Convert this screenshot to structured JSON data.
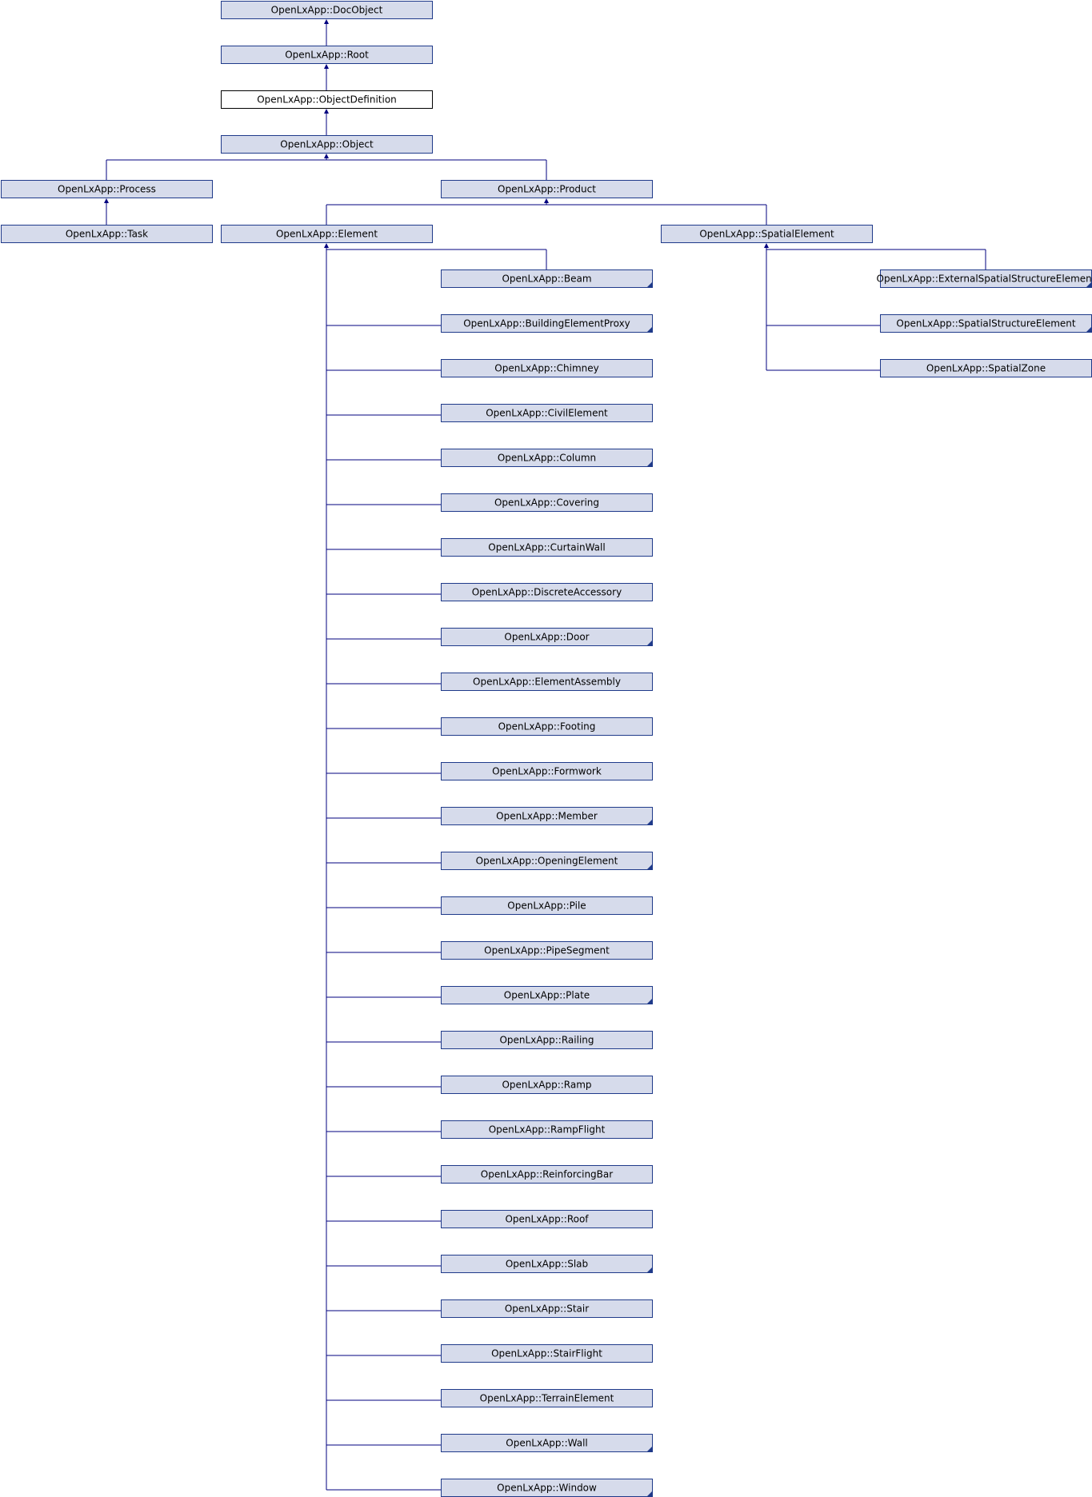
{
  "diagram": {
    "title": "",
    "colors": {
      "node_fill": "#d6dbeb",
      "node_border": "#1f3a8a",
      "edge": "#00007f",
      "current_fill": "#ffffff"
    },
    "nodes": [
      {
        "id": "docobject",
        "label": "OpenLxApp::DocObject"
      },
      {
        "id": "root",
        "label": "OpenLxApp::Root"
      },
      {
        "id": "objectdefinition",
        "label": "OpenLxApp::ObjectDefinition",
        "current": true
      },
      {
        "id": "object",
        "label": "OpenLxApp::Object"
      },
      {
        "id": "process",
        "label": "OpenLxApp::Process"
      },
      {
        "id": "product",
        "label": "OpenLxApp::Product"
      },
      {
        "id": "task",
        "label": "OpenLxApp::Task"
      },
      {
        "id": "element",
        "label": "OpenLxApp::Element"
      },
      {
        "id": "spatialelement",
        "label": "OpenLxApp::SpatialElement"
      },
      {
        "id": "beam",
        "label": "OpenLxApp::Beam",
        "more": true
      },
      {
        "id": "buildingelementproxy",
        "label": "OpenLxApp::BuildingElementProxy",
        "more": true
      },
      {
        "id": "chimney",
        "label": "OpenLxApp::Chimney"
      },
      {
        "id": "civilelement",
        "label": "OpenLxApp::CivilElement"
      },
      {
        "id": "column",
        "label": "OpenLxApp::Column",
        "more": true
      },
      {
        "id": "covering",
        "label": "OpenLxApp::Covering"
      },
      {
        "id": "curtainwall",
        "label": "OpenLxApp::CurtainWall"
      },
      {
        "id": "discreteaccessory",
        "label": "OpenLxApp::DiscreteAccessory"
      },
      {
        "id": "door",
        "label": "OpenLxApp::Door",
        "more": true
      },
      {
        "id": "elementassembly",
        "label": "OpenLxApp::ElementAssembly"
      },
      {
        "id": "footing",
        "label": "OpenLxApp::Footing"
      },
      {
        "id": "formwork",
        "label": "OpenLxApp::Formwork"
      },
      {
        "id": "member",
        "label": "OpenLxApp::Member",
        "more": true
      },
      {
        "id": "openingelement",
        "label": "OpenLxApp::OpeningElement",
        "more": true
      },
      {
        "id": "pile",
        "label": "OpenLxApp::Pile"
      },
      {
        "id": "pipesegment",
        "label": "OpenLxApp::PipeSegment"
      },
      {
        "id": "plate",
        "label": "OpenLxApp::Plate",
        "more": true
      },
      {
        "id": "railing",
        "label": "OpenLxApp::Railing"
      },
      {
        "id": "ramp",
        "label": "OpenLxApp::Ramp"
      },
      {
        "id": "rampflight",
        "label": "OpenLxApp::RampFlight"
      },
      {
        "id": "reinforcingbar",
        "label": "OpenLxApp::ReinforcingBar"
      },
      {
        "id": "roof",
        "label": "OpenLxApp::Roof"
      },
      {
        "id": "slab",
        "label": "OpenLxApp::Slab",
        "more": true
      },
      {
        "id": "stair",
        "label": "OpenLxApp::Stair"
      },
      {
        "id": "stairflight",
        "label": "OpenLxApp::StairFlight"
      },
      {
        "id": "terrainelement",
        "label": "OpenLxApp::TerrainElement"
      },
      {
        "id": "wall",
        "label": "OpenLxApp::Wall",
        "more": true
      },
      {
        "id": "window",
        "label": "OpenLxApp::Window",
        "more": true
      },
      {
        "id": "externalspatialstructureelement",
        "label": "OpenLxApp::ExternalSpatialStructureElement",
        "more": true
      },
      {
        "id": "spatialstructureelement",
        "label": "OpenLxApp::SpatialStructureElement",
        "more": true
      },
      {
        "id": "spatialzone",
        "label": "OpenLxApp::SpatialZone"
      }
    ],
    "edges": [
      {
        "from": "root",
        "to": "docobject"
      },
      {
        "from": "objectdefinition",
        "to": "root"
      },
      {
        "from": "object",
        "to": "objectdefinition"
      },
      {
        "from": "process",
        "to": "object"
      },
      {
        "from": "product",
        "to": "object"
      },
      {
        "from": "task",
        "to": "process"
      },
      {
        "from": "element",
        "to": "product"
      },
      {
        "from": "spatialelement",
        "to": "product"
      },
      {
        "from": "beam",
        "to": "element"
      },
      {
        "from": "buildingelementproxy",
        "to": "element"
      },
      {
        "from": "chimney",
        "to": "element"
      },
      {
        "from": "civilelement",
        "to": "element"
      },
      {
        "from": "column",
        "to": "element"
      },
      {
        "from": "covering",
        "to": "element"
      },
      {
        "from": "curtainwall",
        "to": "element"
      },
      {
        "from": "discreteaccessory",
        "to": "element"
      },
      {
        "from": "door",
        "to": "element"
      },
      {
        "from": "elementassembly",
        "to": "element"
      },
      {
        "from": "footing",
        "to": "element"
      },
      {
        "from": "formwork",
        "to": "element"
      },
      {
        "from": "member",
        "to": "element"
      },
      {
        "from": "openingelement",
        "to": "element"
      },
      {
        "from": "pile",
        "to": "element"
      },
      {
        "from": "pipesegment",
        "to": "element"
      },
      {
        "from": "plate",
        "to": "element"
      },
      {
        "from": "railing",
        "to": "element"
      },
      {
        "from": "ramp",
        "to": "element"
      },
      {
        "from": "rampflight",
        "to": "element"
      },
      {
        "from": "reinforcingbar",
        "to": "element"
      },
      {
        "from": "roof",
        "to": "element"
      },
      {
        "from": "slab",
        "to": "element"
      },
      {
        "from": "stair",
        "to": "element"
      },
      {
        "from": "stairflight",
        "to": "element"
      },
      {
        "from": "terrainelement",
        "to": "element"
      },
      {
        "from": "wall",
        "to": "element"
      },
      {
        "from": "window",
        "to": "element"
      },
      {
        "from": "externalspatialstructureelement",
        "to": "spatialelement"
      },
      {
        "from": "spatialstructureelement",
        "to": "spatialelement"
      },
      {
        "from": "spatialzone",
        "to": "spatialelement"
      }
    ]
  }
}
